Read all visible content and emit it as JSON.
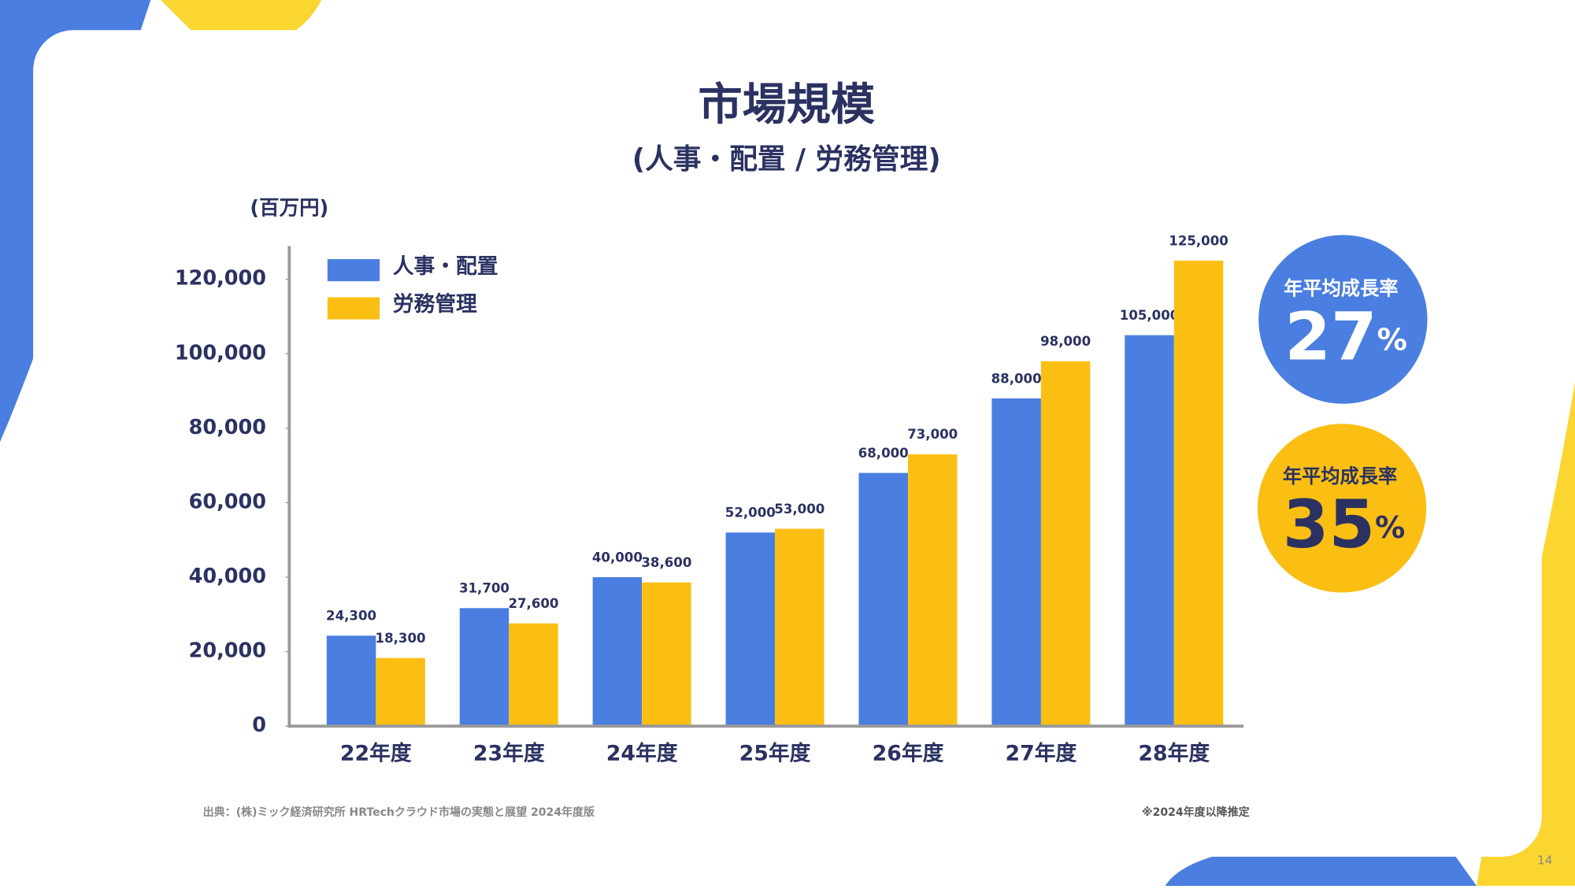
{
  "chart_data": {
    "type": "bar",
    "title": "市場規模",
    "subtitle": "(人事・配置 / 労務管理)",
    "y_label": "(百万円)",
    "categories": [
      "22年度",
      "23年度",
      "24年度",
      "25年度",
      "26年度",
      "27年度",
      "28年度"
    ],
    "series": [
      {
        "name": "人事・配置",
        "color": "#4a7ee0",
        "values": [
          24300,
          31700,
          40000,
          52000,
          68000,
          88000,
          105000
        ],
        "value_labels": [
          "24,300",
          "31,700",
          "40,000",
          "52,000",
          "68,000",
          "88,000",
          "105,000"
        ]
      },
      {
        "name": "労務管理",
        "color": "#fbbf14",
        "values": [
          18300,
          27600,
          38600,
          53000,
          73000,
          98000,
          125000
        ],
        "value_labels": [
          "18,300",
          "27,600",
          "38,600",
          "53,000",
          "73,000",
          "98,000",
          "125,000"
        ]
      }
    ],
    "ylim": [
      0,
      130000
    ],
    "yticks": [
      0,
      {
        "value": 20000,
        "label": "20,000"
      },
      {
        "value": 40000,
        "label": "40,000"
      },
      {
        "value": 60000,
        "label": "60,000"
      },
      {
        "value": 80000,
        "label": "80,000"
      },
      {
        "value": 100000,
        "label": "100,000"
      },
      {
        "value": 120000,
        "label": "120,000"
      }
    ],
    "grid": false,
    "cagr": [
      {
        "label": "年平均成長率",
        "value": 27,
        "unit": "%"
      },
      {
        "label": "年平均成長率",
        "value": 35,
        "unit": "%"
      }
    ],
    "source": "出典：(株)ミック経済研究所 HRTechクラウド市場の実態と展望 2024年度版",
    "note": "※2024年度以降推定",
    "page_number": "14"
  }
}
